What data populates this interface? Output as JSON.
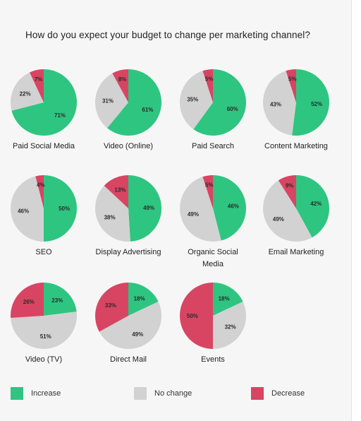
{
  "title": "How do you expect your budget to change per marketing channel?",
  "colors": {
    "increase": "#2ec581",
    "nochange": "#d2d2d2",
    "decrease": "#d84562"
  },
  "legend": [
    {
      "name": "Increase",
      "color": "#2ec581"
    },
    {
      "name": "No change",
      "color": "#d2d2d2"
    },
    {
      "name": "Decrease",
      "color": "#d84562"
    }
  ],
  "chart_data": {
    "type": "pie",
    "title": "How do you expect your budget to change per marketing channel?",
    "series_order": [
      "Increase",
      "No change",
      "Decrease"
    ],
    "pies": [
      {
        "label": "Paid Social Media",
        "increase": 71,
        "nochange": 22,
        "decrease": 7
      },
      {
        "label": "Video (Online)",
        "increase": 61,
        "nochange": 31,
        "decrease": 8
      },
      {
        "label": "Paid Search",
        "increase": 60,
        "nochange": 35,
        "decrease": 5
      },
      {
        "label": "Content Marketing",
        "increase": 52,
        "nochange": 43,
        "decrease": 5
      },
      {
        "label": "SEO",
        "increase": 50,
        "nochange": 46,
        "decrease": 4
      },
      {
        "label": "Display Advertising",
        "increase": 49,
        "nochange": 38,
        "decrease": 13
      },
      {
        "label": "Organic Social Media",
        "increase": 46,
        "nochange": 49,
        "decrease": 5
      },
      {
        "label": "Email Marketing",
        "increase": 42,
        "nochange": 49,
        "decrease": 9
      },
      {
        "label": "Video (TV)",
        "increase": 23,
        "nochange": 51,
        "decrease": 26
      },
      {
        "label": "Direct Mail",
        "increase": 18,
        "nochange": 49,
        "decrease": 33
      },
      {
        "label": "Events",
        "increase": 18,
        "nochange": 32,
        "decrease": 50
      }
    ]
  }
}
